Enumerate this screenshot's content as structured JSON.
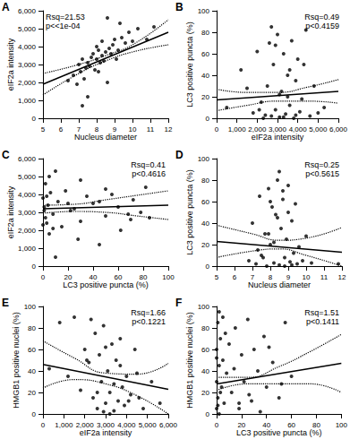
{
  "chart_data": [
    {
      "type": "scatter",
      "panel": "A",
      "x_label": "Nucleus diameter",
      "y_label": "eIF2a intensity",
      "xlim": [
        5,
        12
      ],
      "xticks": [
        5,
        6,
        7,
        8,
        9,
        10,
        11,
        12
      ],
      "ylim": [
        0,
        6000
      ],
      "yticks": [
        0,
        1000,
        2000,
        3000,
        4000,
        5000,
        6000
      ],
      "annotations": [
        "Rsq=21.53",
        "p<<1e-04"
      ],
      "color": "#000000",
      "marker": "circle",
      "x": [
        6.7,
        6.9,
        7.0,
        7.1,
        7.2,
        7.3,
        7.4,
        7.5,
        7.5,
        7.6,
        7.7,
        7.8,
        7.9,
        8.0,
        8.0,
        8.1,
        8.2,
        8.3,
        8.3,
        8.4,
        8.5,
        8.6,
        8.7,
        8.8,
        8.9,
        9.0,
        9.1,
        9.2,
        9.4,
        9.6,
        9.8,
        10.0,
        10.3,
        10.8,
        11.2,
        7.2,
        8.6,
        9.3,
        6.4,
        8.1
      ],
      "values": [
        2400,
        1900,
        3000,
        2600,
        3300,
        2200,
        2800,
        3100,
        1200,
        2900,
        3400,
        3600,
        2700,
        3300,
        4000,
        3800,
        3100,
        3500,
        4300,
        3200,
        3700,
        5600,
        3900,
        3600,
        4100,
        4400,
        3300,
        3800,
        4500,
        4200,
        4800,
        4300,
        5000,
        4400,
        5100,
        700,
        2000,
        5300,
        2100,
        2600
      ],
      "fit_line": {
        "x": [
          5,
          12
        ],
        "values": [
          1900,
          4800
        ],
        "line_style": "solid"
      },
      "ci_upper": {
        "x": [
          5,
          7,
          8.5,
          10,
          12
        ],
        "values": [
          2500,
          3000,
          3500,
          4100,
          5500
        ],
        "line_style": "dotted"
      },
      "ci_lower": {
        "x": [
          5,
          7,
          8.5,
          10,
          12
        ],
        "values": [
          1300,
          2500,
          3200,
          3700,
          4100
        ],
        "line_style": "dotted"
      }
    },
    {
      "type": "scatter",
      "panel": "B",
      "x_label": "eIF2a intensity",
      "y_label": "LC3 positive puncta (%)",
      "xlim": [
        0,
        6000
      ],
      "xticks": [
        0,
        1000,
        2000,
        3000,
        4000,
        5000,
        6000
      ],
      "ylim": [
        0,
        100
      ],
      "yticks": [
        0,
        20,
        40,
        60,
        80,
        100
      ],
      "annotations": [
        "Rsq=0.49",
        "p<0.4159"
      ],
      "color": "#000000",
      "marker": "circle",
      "x": [
        500,
        1200,
        1800,
        2000,
        2200,
        2400,
        2500,
        2600,
        2700,
        2800,
        2900,
        3000,
        3100,
        3200,
        3300,
        3400,
        3500,
        3600,
        3700,
        3800,
        3900,
        4000,
        4100,
        4200,
        4400,
        4600,
        4800,
        5000,
        5300,
        2300,
        2900,
        3300,
        3600,
        3100,
        2700,
        3900,
        1500,
        4300,
        3500,
        2100
      ],
      "values": [
        10,
        45,
        5,
        62,
        15,
        3,
        30,
        70,
        2,
        50,
        8,
        78,
        1,
        25,
        60,
        4,
        40,
        12,
        72,
        0,
        35,
        55,
        6,
        18,
        82,
        2,
        30,
        5,
        10,
        0,
        68,
        1,
        45,
        22,
        85,
        3,
        28,
        50,
        20,
        8
      ],
      "fit_line": {
        "x": [
          0,
          6000
        ],
        "values": [
          17,
          25
        ],
        "line_style": "solid"
      },
      "ci_upper": {
        "x": [
          0,
          1500,
          3000,
          4500,
          6000
        ],
        "values": [
          27,
          24,
          24,
          29,
          36
        ],
        "line_style": "dotted"
      },
      "ci_lower": {
        "x": [
          0,
          1500,
          3000,
          4500,
          6000
        ],
        "values": [
          7,
          12,
          16,
          16,
          14
        ],
        "line_style": "dotted"
      }
    },
    {
      "type": "scatter",
      "panel": "C",
      "x_label": "LC3 positive puncta (%)",
      "y_label": "eIF2a intensity",
      "xlim": [
        0,
        100
      ],
      "xticks": [
        0,
        20,
        40,
        60,
        80,
        100
      ],
      "ylim": [
        0,
        6000
      ],
      "yticks": [
        0,
        1000,
        2000,
        3000,
        4000,
        5000,
        6000
      ],
      "annotations": [
        "Rsq=0.41",
        "p<0.4616"
      ],
      "color": "#000000",
      "marker": "circle",
      "x": [
        10,
        45,
        5,
        62,
        15,
        3,
        30,
        70,
        2,
        50,
        8,
        78,
        1,
        25,
        60,
        4,
        40,
        12,
        72,
        0,
        35,
        55,
        6,
        18,
        82,
        2,
        30,
        5,
        10,
        0,
        68,
        1,
        45,
        22,
        85,
        3,
        28,
        50,
        20,
        8
      ],
      "values": [
        500,
        1200,
        1800,
        2000,
        2200,
        2400,
        2500,
        2600,
        2700,
        2800,
        2900,
        3000,
        3100,
        3200,
        3300,
        3400,
        3500,
        3600,
        3700,
        3800,
        3900,
        4000,
        4100,
        4200,
        4400,
        4600,
        4800,
        5000,
        5300,
        2300,
        2900,
        3300,
        3600,
        3100,
        2700,
        3900,
        1500,
        4300,
        3500,
        2100
      ],
      "fit_line": {
        "x": [
          0,
          100
        ],
        "values": [
          3200,
          3400
        ],
        "line_style": "solid"
      },
      "ci_upper": {
        "x": [
          0,
          25,
          50,
          75,
          100
        ],
        "values": [
          3400,
          3450,
          3700,
          3950,
          4200
        ],
        "line_style": "dotted"
      },
      "ci_lower": {
        "x": [
          0,
          25,
          50,
          75,
          100
        ],
        "values": [
          2950,
          3050,
          3000,
          2800,
          2600
        ],
        "line_style": "dotted"
      }
    },
    {
      "type": "scatter",
      "panel": "D",
      "x_label": "Nucleus diameter",
      "y_label": "LC3 positive puncta (%)",
      "xlim": [
        5,
        12
      ],
      "xticks": [
        5,
        6,
        7,
        8,
        9,
        10,
        11,
        12
      ],
      "ylim": [
        0,
        100
      ],
      "yticks": [
        0,
        20,
        40,
        60,
        80,
        100
      ],
      "annotations": [
        "Rsq=0.25",
        "p<0.5615"
      ],
      "color": "#000000",
      "marker": "circle",
      "x": [
        6.8,
        7.0,
        7.2,
        7.4,
        7.5,
        7.7,
        7.8,
        7.9,
        8.0,
        8.1,
        8.2,
        8.3,
        8.4,
        8.5,
        8.6,
        8.7,
        8.8,
        8.9,
        9.0,
        9.1,
        9.2,
        9.3,
        9.4,
        9.5,
        9.6,
        9.8,
        10.0,
        10.3,
        11.8,
        7.3,
        8.0,
        8.5,
        8.8,
        9.0,
        8.2,
        7.6,
        8.7,
        9.2,
        8.4,
        7.9
      ],
      "values": [
        5,
        40,
        2,
        65,
        10,
        30,
        0,
        72,
        20,
        55,
        3,
        48,
        80,
        1,
        35,
        62,
        8,
        25,
        75,
        4,
        42,
        12,
        58,
        2,
        18,
        5,
        28,
        3,
        2,
        15,
        60,
        88,
        0,
        50,
        22,
        8,
        70,
        1,
        45,
        30
      ],
      "fit_line": {
        "x": [
          5,
          12
        ],
        "values": [
          23,
          13
        ],
        "line_style": "solid"
      },
      "ci_upper": {
        "x": [
          5,
          7,
          8.5,
          10,
          12
        ],
        "values": [
          38,
          30,
          24,
          26,
          36
        ],
        "line_style": "dotted"
      },
      "ci_lower": {
        "x": [
          5,
          7,
          8.5,
          10,
          12
        ],
        "values": [
          8,
          14,
          16,
          10,
          0
        ],
        "line_style": "dotted"
      }
    },
    {
      "type": "scatter",
      "panel": "E",
      "x_label": "eIF2a intensity",
      "y_label": "HMGB1 positive nuclei (%)",
      "xlim": [
        0,
        6000
      ],
      "xticks": [
        0,
        1000,
        2000,
        3000,
        4000,
        5000,
        6000
      ],
      "ylim": [
        0,
        100
      ],
      "yticks": [
        0,
        20,
        40,
        60,
        80,
        100
      ],
      "annotations": [
        "Rsq=1.66",
        "p<0.1221"
      ],
      "color": "#000000",
      "marker": "circle",
      "x": [
        300,
        800,
        1200,
        1500,
        1800,
        2000,
        2200,
        2400,
        2500,
        2600,
        2700,
        2800,
        2900,
        3000,
        3100,
        3200,
        3300,
        3400,
        3500,
        3600,
        3700,
        3800,
        3900,
        4000,
        4200,
        4400,
        4600,
        4800,
        5200,
        5600,
        2300,
        2900,
        3400,
        3700,
        4100,
        2100,
        3200,
        4500,
        2600,
        3000
      ],
      "values": [
        42,
        85,
        35,
        90,
        22,
        60,
        48,
        15,
        75,
        5,
        55,
        30,
        82,
        10,
        40,
        20,
        65,
        3,
        50,
        12,
        70,
        25,
        8,
        35,
        18,
        60,
        15,
        5,
        30,
        10,
        88,
        2,
        28,
        45,
        12,
        50,
        0,
        38,
        20,
        62
      ],
      "fit_line": {
        "x": [
          0,
          6000
        ],
        "values": [
          46,
          23
        ],
        "line_style": "solid"
      },
      "ci_upper": {
        "x": [
          0,
          1500,
          3000,
          4500,
          6000
        ],
        "values": [
          68,
          52,
          38,
          37,
          47
        ],
        "line_style": "dotted"
      },
      "ci_lower": {
        "x": [
          0,
          1500,
          3000,
          4500,
          6000
        ],
        "values": [
          24,
          32,
          28,
          17,
          0
        ],
        "line_style": "dotted"
      }
    },
    {
      "type": "scatter",
      "panel": "F",
      "x_label": "LC3 positive puncta (%)",
      "y_label": "HMGB1 positive nuclei (%)",
      "xlim": [
        0,
        100
      ],
      "xticks": [
        0,
        20,
        40,
        60,
        80,
        100
      ],
      "ylim": [
        0,
        100
      ],
      "yticks": [
        0,
        20,
        40,
        60,
        80,
        100
      ],
      "annotations": [
        "Rsq=1.51",
        "p<0.1411"
      ],
      "color": "#000000",
      "marker": "circle",
      "x": [
        0,
        0,
        0,
        1,
        1,
        2,
        2,
        3,
        4,
        5,
        5,
        6,
        8,
        10,
        12,
        15,
        18,
        20,
        22,
        25,
        28,
        30,
        33,
        35,
        38,
        40,
        45,
        50,
        55,
        60,
        2,
        3,
        1,
        0,
        14,
        26,
        42,
        52,
        7,
        18
      ],
      "values": [
        5,
        30,
        60,
        85,
        15,
        45,
        0,
        70,
        25,
        50,
        90,
        10,
        38,
        65,
        20,
        80,
        5,
        55,
        30,
        88,
        12,
        60,
        40,
        2,
        72,
        25,
        48,
        15,
        85,
        35,
        95,
        20,
        8,
        52,
        42,
        18,
        62,
        28,
        75,
        10
      ],
      "fit_line": {
        "x": [
          0,
          100
        ],
        "values": [
          28,
          47
        ],
        "line_style": "solid"
      },
      "ci_upper": {
        "x": [
          0,
          25,
          50,
          75,
          100
        ],
        "values": [
          34,
          34,
          44,
          58,
          74
        ],
        "line_style": "dotted"
      },
      "ci_lower": {
        "x": [
          0,
          25,
          50,
          75,
          100
        ],
        "values": [
          22,
          28,
          28,
          28,
          20
        ],
        "line_style": "dotted"
      }
    }
  ]
}
